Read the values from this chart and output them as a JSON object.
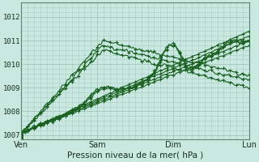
{
  "xlabel": "Pression niveau de la mer( hPa )",
  "background_color": "#c8e8e0",
  "grid_color": "#a8ccc4",
  "line_color": "#1a6020",
  "ylim": [
    1006.8,
    1012.6
  ],
  "day_labels": [
    "Ven",
    "Sam",
    "Dim",
    "Lun"
  ],
  "day_positions": [
    0,
    72,
    144,
    216
  ],
  "yticks": [
    1007,
    1008,
    1009,
    1010,
    1011,
    1012
  ],
  "total_hours": 216
}
